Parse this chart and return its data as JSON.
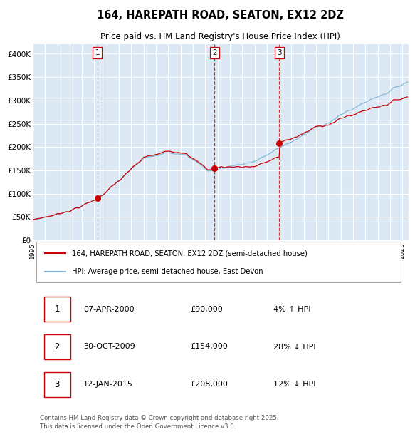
{
  "title_line1": "164, HAREPATH ROAD, SEATON, EX12 2DZ",
  "title_line2": "Price paid vs. HM Land Registry's House Price Index (HPI)",
  "bg_color": "#dce9f5",
  "red_color": "#cc0000",
  "blue_color": "#7ab0d4",
  "vline1_color": "#aaaacc",
  "vline2_color": "#cc0000",
  "sale1_year": 2000,
  "sale1_month": 4,
  "sale1_price": 90000,
  "sale2_year": 2009,
  "sale2_month": 10,
  "sale2_price": 154000,
  "sale3_year": 2015,
  "sale3_month": 1,
  "sale3_price": 208000,
  "legend_line1": "164, HAREPATH ROAD, SEATON, EX12 2DZ (semi-detached house)",
  "legend_line2": "HPI: Average price, semi-detached house, East Devon",
  "table_rows": [
    {
      "num": "1",
      "date": "07-APR-2000",
      "price": "£90,000",
      "change": "4% ↑ HPI"
    },
    {
      "num": "2",
      "date": "30-OCT-2009",
      "price": "£154,000",
      "change": "28% ↓ HPI"
    },
    {
      "num": "3",
      "date": "12-JAN-2015",
      "price": "£208,000",
      "change": "12% ↓ HPI"
    }
  ],
  "footer": "Contains HM Land Registry data © Crown copyright and database right 2025.\nThis data is licensed under the Open Government Licence v3.0.",
  "ylim": [
    0,
    420000
  ],
  "yticks": [
    0,
    50000,
    100000,
    150000,
    200000,
    250000,
    300000,
    350000,
    400000
  ],
  "ytick_labels": [
    "£0",
    "£50K",
    "£100K",
    "£150K",
    "£200K",
    "£250K",
    "£300K",
    "£350K",
    "£400K"
  ],
  "xlim_start": 1995.0,
  "xlim_end": 2025.5
}
